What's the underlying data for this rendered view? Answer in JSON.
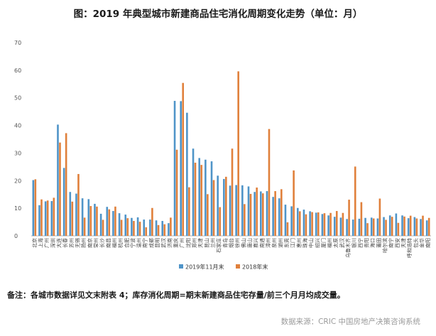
{
  "chart_data": {
    "type": "bar",
    "title": "图：2019 年典型城市新建商品住宅消化周期变化走势（单位：月）",
    "xlabel": "",
    "ylabel": "",
    "ylim": [
      0,
      70
    ],
    "yticks": [
      0,
      10,
      20,
      30,
      40,
      50,
      60,
      70
    ],
    "grid": false,
    "legend_position": "bottom",
    "categories": [
      "北京",
      "上海",
      "广州",
      "深圳",
      "大连",
      "长春",
      "苏州",
      "无锡",
      "扬州",
      "南京",
      "常州",
      "长沙",
      "南昌",
      "福州",
      "杭州",
      "合肥",
      "宁波",
      "温州",
      "南宁",
      "成都",
      "昆明",
      "武汉",
      "济南",
      "重庆",
      "广州",
      "沈阳",
      "郑州",
      "天津",
      "昆山",
      "兰州",
      "石家庄",
      "青岛",
      "烟台",
      "徐州",
      "佛山",
      "唐山",
      "嘉兴",
      "南通",
      "漳州",
      "泉州",
      "湖州",
      "东莞",
      "江门",
      "惠州",
      "珠海",
      "中山",
      "绍兴",
      "厦门",
      "福州",
      "太原",
      "武汉",
      "乌鲁木齐",
      "银川",
      "西宁",
      "贵阳",
      "海口",
      "莆田",
      "哈尔滨",
      "南宁",
      "西安",
      "天津",
      "呼和浩特",
      "包头",
      "金华",
      "南阳"
    ],
    "series": [
      {
        "name": "2019年11月末",
        "color": "#4f94c8",
        "values": [
          20.2,
          11.1,
          12.5,
          12.6,
          40.3,
          24.6,
          15.9,
          15.3,
          13.6,
          13.3,
          11.6,
          8.0,
          10.5,
          9.0,
          8.2,
          7.7,
          6.5,
          6.7,
          5.9,
          5.9,
          5.6,
          5.4,
          4.6,
          48.9,
          48.8,
          44.6,
          31.6,
          28.2,
          27.6,
          27.0,
          21.8,
          20.6,
          18.2,
          18.4,
          18.3,
          17.9,
          15.9,
          16.1,
          16.2,
          14.1,
          13.6,
          11.3,
          10.7,
          10.1,
          9.5,
          8.9,
          8.4,
          7.9,
          7.4,
          6.9,
          6.6,
          6.1,
          5.9,
          6.2,
          6.5,
          6.6,
          6.3,
          6.8,
          7.4,
          8.1,
          7.4,
          6.4,
          6.8,
          6.1,
          5.6
        ]
      },
      {
        "name": "2018年末",
        "color": "#e0803b",
        "values": [
          20.5,
          13.2,
          12.8,
          13.8,
          33.8,
          37.2,
          12.4,
          22.4,
          6.6,
          10.8,
          10.6,
          5.8,
          9.6,
          10.6,
          5.8,
          6.4,
          5.4,
          5.1,
          3.1,
          10.1,
          3.9,
          4.2,
          6.6,
          31.2,
          55.4,
          17.6,
          26.5,
          25.7,
          15.1,
          20.2,
          10.4,
          21.4,
          31.6,
          59.6,
          11.5,
          15.2,
          17.5,
          15.4,
          38.7,
          16.2,
          16.9,
          4.9,
          23.7,
          8.9,
          7.8,
          8.6,
          8.5,
          8.2,
          8.3,
          9.0,
          8.3,
          13.1,
          25.1,
          12.2,
          4.6,
          6.3,
          13.5,
          5.8,
          6.9,
          4.7,
          7.0,
          7.3,
          6.3,
          7.3,
          6.5
        ]
      }
    ],
    "legend": [
      "2019年11月末",
      "2018年末"
    ]
  },
  "footnote": "备注：各城市数据详见文末附表 4；库存消化周期=期末新建商品住宅存量/前三个月月均成交量。",
  "source": "数据来源：CRIC 中国房地产决策咨询系统"
}
